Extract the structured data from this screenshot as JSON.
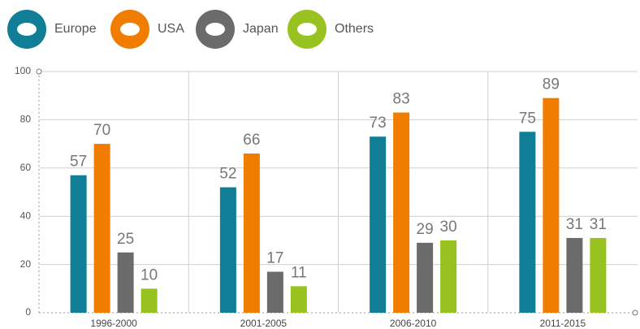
{
  "chart_data": {
    "type": "bar",
    "categories": [
      "1996-2000",
      "2001-2005",
      "2006-2010",
      "2011-2015"
    ],
    "series": [
      {
        "name": "Europe",
        "color": "#0f7e96",
        "values": [
          57,
          52,
          73,
          75
        ]
      },
      {
        "name": "USA",
        "color": "#f07d00",
        "values": [
          70,
          66,
          83,
          89
        ]
      },
      {
        "name": "Japan",
        "color": "#6b6b6b",
        "values": [
          25,
          17,
          29,
          31
        ]
      },
      {
        "name": "Others",
        "color": "#98c21f",
        "values": [
          10,
          11,
          30,
          31
        ]
      }
    ],
    "ylim": [
      0,
      100
    ],
    "yticks": [
      0,
      20,
      40,
      60,
      80,
      100
    ],
    "grid": true,
    "legend": "top"
  }
}
